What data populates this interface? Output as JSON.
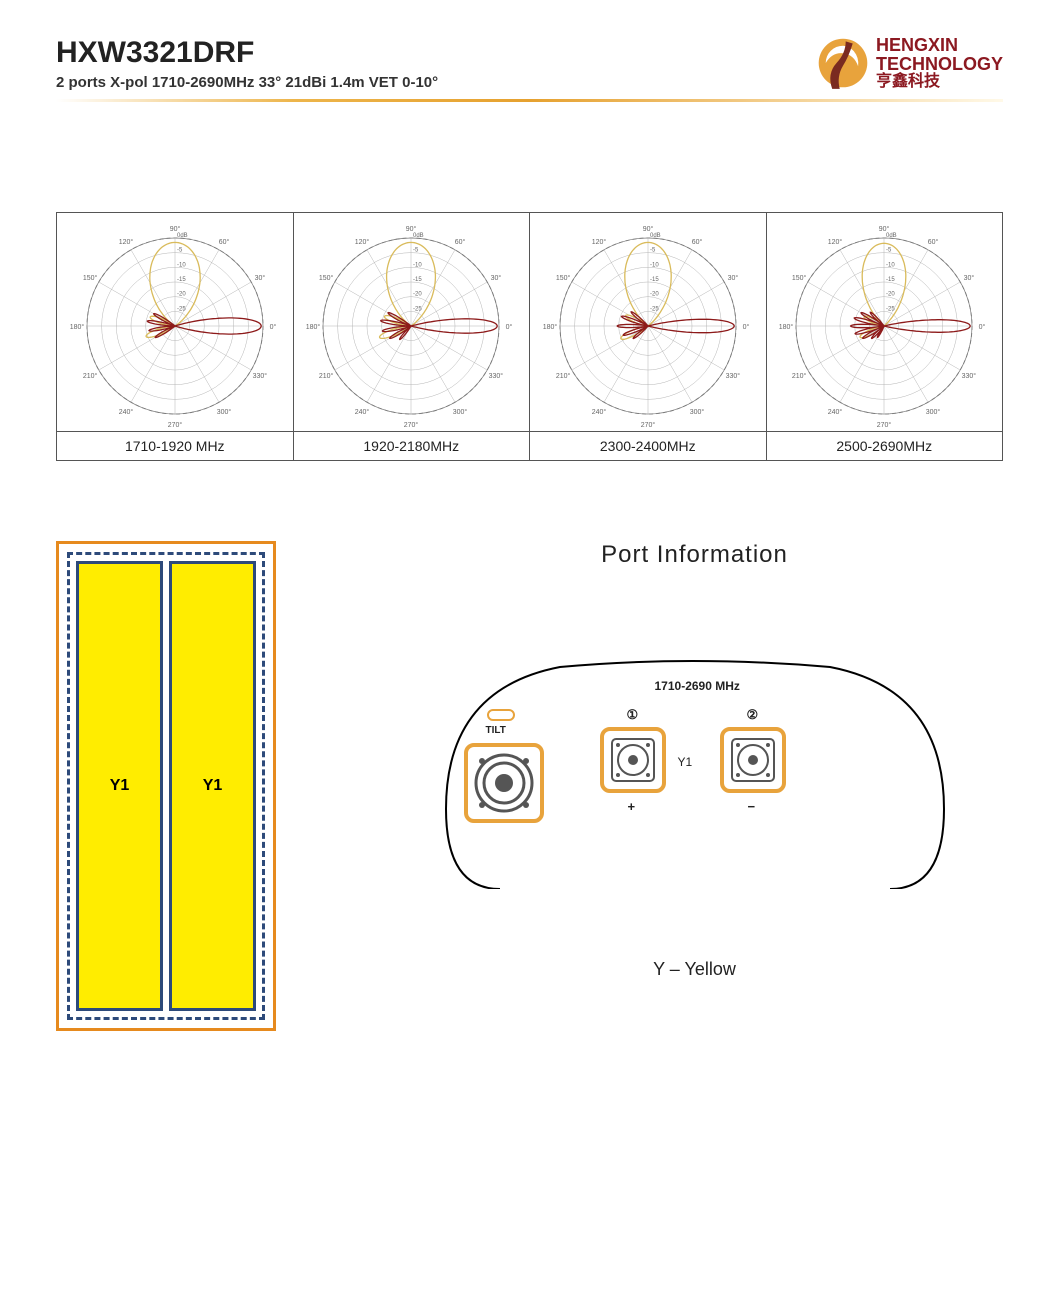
{
  "header": {
    "title": "HXW3321DRF",
    "subtitle": "2 ports X-pol 1710-2690MHz 33° 21dBi 1.4m VET 0-10°",
    "logo": {
      "line1": "HENGXIN",
      "line2": "TECHNOLOGY",
      "line3": "亨鑫科技"
    }
  },
  "polar": {
    "angle_labels": [
      "0°",
      "30°",
      "60°",
      "90°",
      "120°",
      "150°",
      "180°",
      "210°",
      "240°",
      "270°",
      "300°",
      "330°"
    ],
    "radial_labels": [
      "0dB",
      "-5",
      "-10",
      "-15",
      "-20",
      "-25"
    ],
    "vertical_color": "#d9bb5b",
    "horizontal_color": "#8d1a1a",
    "grid_color": "#b5b5b5",
    "axis_color": "#888",
    "charts": [
      {
        "label": "1710-1920 MHz",
        "vertical_lobe": {
          "main_width_deg": 60,
          "depth": 0.95,
          "side_lobes": [
            [
              200,
              0.35
            ],
            [
              160,
              0.3
            ]
          ]
        },
        "horizontal_lobe": {
          "main_dir_deg": 0,
          "main_width_deg": 18,
          "depth": 0.98,
          "back_lobes": [
            [
              150,
              0.28
            ],
            [
              170,
              0.32
            ],
            [
              190,
              0.3
            ],
            [
              210,
              0.26
            ]
          ]
        }
      },
      {
        "label": "1920-2180MHz",
        "vertical_lobe": {
          "main_width_deg": 58,
          "depth": 0.95,
          "side_lobes": [
            [
              200,
              0.38
            ],
            [
              160,
              0.32
            ]
          ]
        },
        "horizontal_lobe": {
          "main_dir_deg": 0,
          "main_width_deg": 16,
          "depth": 0.98,
          "back_lobes": [
            [
              150,
              0.3
            ],
            [
              170,
              0.35
            ],
            [
              190,
              0.33
            ],
            [
              210,
              0.28
            ],
            [
              230,
              0.2
            ]
          ]
        }
      },
      {
        "label": "2300-2400MHz",
        "vertical_lobe": {
          "main_width_deg": 55,
          "depth": 0.95,
          "side_lobes": [
            [
              205,
              0.34
            ],
            [
              155,
              0.28
            ]
          ]
        },
        "horizontal_lobe": {
          "main_dir_deg": 0,
          "main_width_deg": 15,
          "depth": 0.98,
          "back_lobes": [
            [
              140,
              0.25
            ],
            [
              160,
              0.32
            ],
            [
              180,
              0.35
            ],
            [
              200,
              0.3
            ],
            [
              220,
              0.22
            ]
          ]
        }
      },
      {
        "label": "2500-2690MHz",
        "vertical_lobe": {
          "main_width_deg": 52,
          "depth": 0.94,
          "side_lobes": [
            [
              205,
              0.3
            ],
            [
              155,
              0.25
            ]
          ]
        },
        "horizontal_lobe": {
          "main_dir_deg": 0,
          "main_width_deg": 14,
          "depth": 0.98,
          "back_lobes": [
            [
              135,
              0.22
            ],
            [
              150,
              0.3
            ],
            [
              165,
              0.35
            ],
            [
              180,
              0.38
            ],
            [
              195,
              0.34
            ],
            [
              210,
              0.28
            ],
            [
              225,
              0.2
            ],
            [
              240,
              0.15
            ]
          ]
        }
      }
    ]
  },
  "antenna": {
    "bar1": "Y1",
    "bar2": "Y1"
  },
  "ports": {
    "title": "Port    Information",
    "frequency": "1710-2690 MHz",
    "tilt_label": "TILT",
    "port1_num": "①",
    "port2_num": "②",
    "port1_sign": "+",
    "port2_sign": "−",
    "array_label": "Y1",
    "legend": "Y – Yellow"
  }
}
